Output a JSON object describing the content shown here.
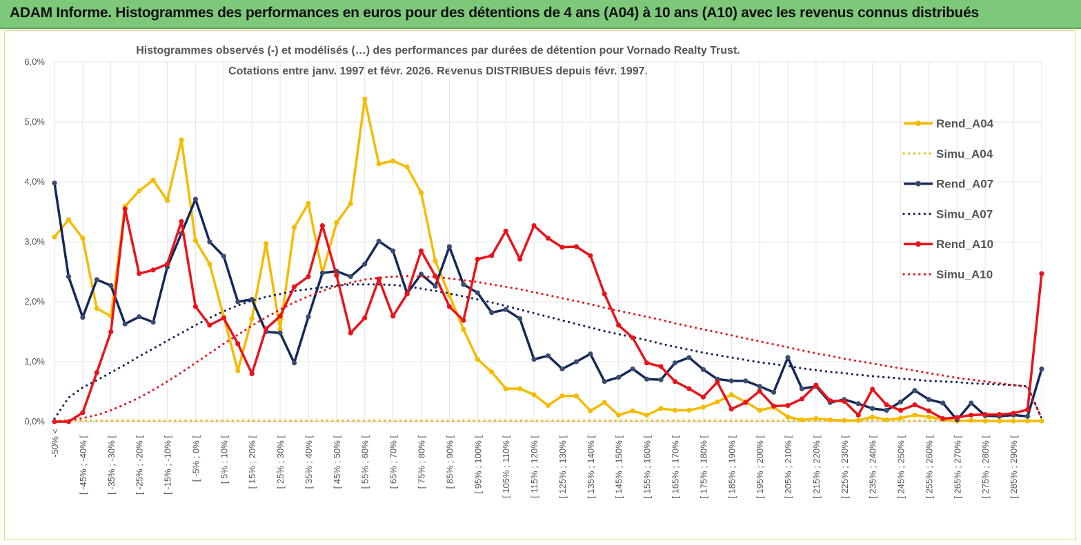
{
  "header": {
    "title": "ADAM Informe. Histogrammes des performances en euros pour des détentions de 4 ans (A04) à 10 ans (A10) avec les revenus connus distribués"
  },
  "chart_data": {
    "type": "line",
    "title_line1": "Histogrammes observés (-) et modélisés (…) des performances par durées de détention pour Vornado Realty Trust.",
    "title_line2": "Cotations entre janv. 1997 et févr. 2026. Revenus DISTRIBUES depuis févr. 1997.",
    "ylim": [
      0,
      6
    ],
    "yticks": [
      "0,0%",
      "1,0%",
      "2,0%",
      "3,0%",
      "4,0%",
      "5,0%",
      "6,0%"
    ],
    "ytick_values": [
      0,
      1,
      2,
      3,
      4,
      5,
      6
    ],
    "xtick_labels": [
      "-50% <",
      "[ -45% ; -40% [",
      "[ -35% ; -30% [",
      "[ -25% ; -20% [",
      "[ -15% ; -10% [",
      "[ -5% ; 0% [",
      "[ 5% ; 10% [",
      "[ 15% ; 20% [",
      "[ 25% ; 30% [",
      "[ 35% ; 40% [",
      "[ 45% ; 50% [",
      "[ 55% ; 60% [",
      "[ 65% ; 70% [",
      "[ 75% ; 80% [",
      "[ 85% ; 90% [",
      "[ 95% ; 100% [",
      "[ 105% ; 110% [",
      "[ 115% ; 120% [",
      "[ 125% ; 130% [",
      "[ 135% ; 140% [",
      "[ 145% ; 150% [",
      "[ 155% ; 160% [",
      "[ 165% ; 170% [",
      "[ 175% ; 180% [",
      "[ 185% ; 190% [",
      "[ 195% ; 200% [",
      "[ 205% ; 210% [",
      "[ 215% ; 220% [",
      "[ 225% ; 230% [",
      "[ 235% ; 240% [",
      "[ 245% ; 250% [",
      "[ 255% ; 260% [",
      "[ 265% ; 270% [",
      "[ 275% ; 280% [",
      "[ 285% ; 290% ["
    ],
    "series": [
      {
        "name": "Rend_A04",
        "style": "solid",
        "color": "#f5bb00",
        "values": [
          3.08,
          3.37,
          3.06,
          1.89,
          1.76,
          3.59,
          3.85,
          4.03,
          3.69,
          4.7,
          3.02,
          2.63,
          1.75,
          0.85,
          1.72,
          2.97,
          1.54,
          3.24,
          3.64,
          2.48,
          3.32,
          3.64,
          5.38,
          4.3,
          4.35,
          4.25,
          3.82,
          2.68,
          2.11,
          1.54,
          1.04,
          0.83,
          0.55,
          0.55,
          0.45,
          0.27,
          0.43,
          0.43,
          0.18,
          0.32,
          0.11,
          0.18,
          0.11,
          0.22,
          0.19,
          0.19,
          0.24,
          0.33,
          0.45,
          0.33,
          0.19,
          0.24,
          0.08,
          0.03,
          0.05,
          0.03,
          0.02,
          0.02,
          0.08,
          0.03,
          0.06,
          0.11,
          0.08,
          0.04,
          0.01,
          0.02,
          0.01,
          0.01,
          0.01,
          0.01,
          0.01
        ]
      },
      {
        "name": "Simu_A04",
        "style": "dotted",
        "color": "#f5bb00",
        "values": [
          0.02,
          0.02,
          0.02,
          0.02,
          0.02,
          0.02,
          0.02,
          0.02,
          0.02,
          0.02,
          0.02,
          0.02,
          0.02,
          0.02,
          0.02,
          0.02,
          0.02,
          0.02,
          0.02,
          0.02,
          0.02,
          0.02,
          0.02,
          0.02,
          0.02,
          0.02,
          0.02,
          0.02,
          0.02,
          0.02,
          0.02,
          0.02,
          0.02,
          0.02,
          0.02,
          0.02,
          0.02,
          0.02,
          0.02,
          0.02,
          0.02,
          0.02,
          0.02,
          0.02,
          0.02,
          0.02,
          0.02,
          0.02,
          0.02,
          0.02,
          0.02,
          0.02,
          0.02,
          0.02,
          0.02,
          0.02,
          0.02,
          0.02,
          0.02,
          0.02,
          0.02,
          0.02,
          0.02,
          0.02,
          0.02,
          0.02,
          0.02,
          0.02,
          0.02,
          0.02,
          0.02
        ]
      },
      {
        "name": "Rend_A07",
        "style": "solid",
        "color": "#14285a",
        "values": [
          3.98,
          2.42,
          1.74,
          2.37,
          2.27,
          1.63,
          1.75,
          1.66,
          2.58,
          3.14,
          3.71,
          3.0,
          2.76,
          2.0,
          2.04,
          1.5,
          1.48,
          0.98,
          1.75,
          2.48,
          2.51,
          2.42,
          2.63,
          3.01,
          2.85,
          2.14,
          2.46,
          2.26,
          2.92,
          2.29,
          2.15,
          1.82,
          1.87,
          1.72,
          1.04,
          1.1,
          0.88,
          1.0,
          1.13,
          0.67,
          0.74,
          0.88,
          0.71,
          0.7,
          0.98,
          1.07,
          0.87,
          0.71,
          0.68,
          0.68,
          0.59,
          0.49,
          1.07,
          0.55,
          0.59,
          0.32,
          0.37,
          0.3,
          0.22,
          0.19,
          0.33,
          0.52,
          0.37,
          0.31,
          0.03,
          0.31,
          0.1,
          0.09,
          0.11,
          0.09,
          0.88
        ]
      },
      {
        "name": "Simu_A07",
        "style": "dotted",
        "color": "#14285a",
        "values": [
          0.05,
          0.4,
          0.57,
          0.69,
          0.82,
          0.95,
          1.09,
          1.22,
          1.35,
          1.48,
          1.61,
          1.73,
          1.84,
          1.94,
          2.02,
          2.08,
          2.13,
          2.18,
          2.21,
          2.24,
          2.27,
          2.29,
          2.29,
          2.29,
          2.28,
          2.26,
          2.22,
          2.18,
          2.14,
          2.09,
          2.04,
          1.99,
          1.93,
          1.87,
          1.81,
          1.75,
          1.69,
          1.63,
          1.57,
          1.51,
          1.46,
          1.41,
          1.36,
          1.3,
          1.25,
          1.2,
          1.15,
          1.11,
          1.07,
          1.03,
          0.99,
          0.96,
          0.93,
          0.89,
          0.86,
          0.83,
          0.81,
          0.78,
          0.76,
          0.74,
          0.72,
          0.7,
          0.68,
          0.67,
          0.66,
          0.64,
          0.63,
          0.62,
          0.61,
          0.59,
          0.05
        ]
      },
      {
        "name": "Rend_A10",
        "style": "solid",
        "color": "#e8141b",
        "values": [
          0.0,
          0.0,
          0.15,
          0.82,
          1.5,
          3.55,
          2.47,
          2.53,
          2.63,
          3.34,
          1.92,
          1.61,
          1.73,
          1.3,
          0.8,
          1.55,
          1.76,
          2.25,
          2.42,
          3.27,
          2.44,
          1.48,
          1.73,
          2.38,
          1.76,
          2.13,
          2.85,
          2.43,
          1.92,
          1.69,
          2.71,
          2.77,
          3.18,
          2.71,
          3.27,
          3.06,
          2.91,
          2.92,
          2.77,
          2.13,
          1.61,
          1.4,
          0.98,
          0.92,
          0.67,
          0.55,
          0.41,
          0.66,
          0.21,
          0.32,
          0.51,
          0.26,
          0.27,
          0.38,
          0.61,
          0.35,
          0.34,
          0.11,
          0.54,
          0.28,
          0.19,
          0.28,
          0.18,
          0.05,
          0.07,
          0.11,
          0.12,
          0.12,
          0.14,
          0.2,
          2.47
        ]
      },
      {
        "name": "Simu_A10",
        "style": "dotted",
        "color": "#e8141b",
        "values": [
          0.0,
          0.02,
          0.06,
          0.11,
          0.19,
          0.29,
          0.4,
          0.53,
          0.67,
          0.82,
          0.98,
          1.14,
          1.3,
          1.45,
          1.6,
          1.74,
          1.87,
          1.99,
          2.09,
          2.18,
          2.26,
          2.32,
          2.37,
          2.4,
          2.42,
          2.43,
          2.42,
          2.41,
          2.39,
          2.36,
          2.33,
          2.29,
          2.25,
          2.21,
          2.16,
          2.11,
          2.06,
          2.01,
          1.96,
          1.9,
          1.85,
          1.8,
          1.75,
          1.7,
          1.64,
          1.59,
          1.54,
          1.49,
          1.44,
          1.39,
          1.34,
          1.29,
          1.24,
          1.19,
          1.14,
          1.1,
          1.05,
          1.01,
          0.97,
          0.93,
          0.89,
          0.85,
          0.81,
          0.77,
          0.73,
          0.7,
          0.67,
          0.64,
          0.61,
          0.58,
          0.05
        ]
      }
    ],
    "legend": [
      "Rend_A04",
      "Simu_A04",
      "Rend_A07",
      "Simu_A07",
      "Rend_A10",
      "Simu_A10"
    ],
    "legend_position": "right"
  }
}
